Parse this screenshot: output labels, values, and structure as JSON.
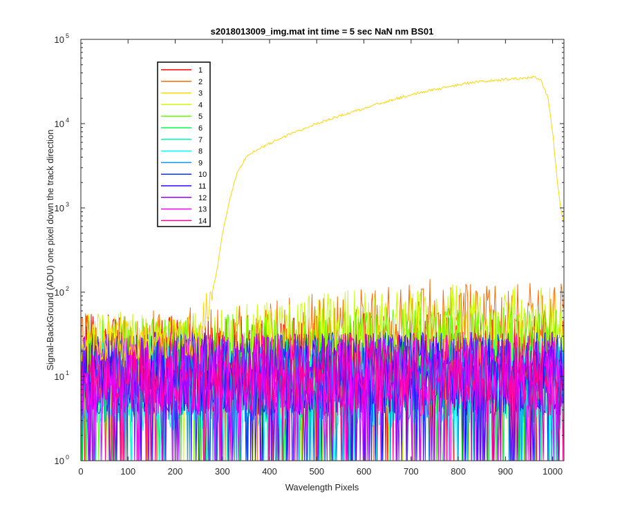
{
  "chart_data": {
    "type": "line",
    "title": "s2018013009_img.mat int time = 5 sec  NaN nm BS01",
    "xlabel": "Wavelength Pixels",
    "ylabel": "Signal-BackGround (ADU) one pixel down the track direction",
    "xlim": [
      0,
      1024
    ],
    "ylim": [
      1,
      100000
    ],
    "yscale": "log",
    "grid": false,
    "legend_position": "top-left",
    "x_ticks": [
      "0",
      "100",
      "200",
      "300",
      "400",
      "500",
      "600",
      "700",
      "800",
      "900",
      "1000"
    ],
    "y_ticks": [
      {
        "base": "10",
        "exp": "0"
      },
      {
        "base": "10",
        "exp": "1"
      },
      {
        "base": "10",
        "exp": "2"
      },
      {
        "base": "10",
        "exp": "3"
      },
      {
        "base": "10",
        "exp": "4"
      },
      {
        "base": "10",
        "exp": "5"
      }
    ],
    "series": [
      {
        "name": "1",
        "color": "#ff0000",
        "level": [
          [
            0,
            20
          ],
          [
            1024,
            20
          ]
        ],
        "noise": "high"
      },
      {
        "name": "2",
        "color": "#ff6a00",
        "level": [
          [
            0,
            20
          ],
          [
            300,
            25
          ],
          [
            500,
            35
          ],
          [
            760,
            55
          ],
          [
            1024,
            45
          ]
        ],
        "noise": "high"
      },
      {
        "name": "3",
        "color": "#ffd400",
        "values": [
          [
            0,
            25
          ],
          [
            240,
            30
          ],
          [
            260,
            45
          ],
          [
            275,
            80
          ],
          [
            290,
            200
          ],
          [
            300,
            500
          ],
          [
            315,
            1200
          ],
          [
            330,
            2500
          ],
          [
            350,
            4000
          ],
          [
            375,
            5000
          ],
          [
            400,
            5800
          ],
          [
            450,
            7800
          ],
          [
            500,
            10000
          ],
          [
            550,
            12500
          ],
          [
            600,
            15000
          ],
          [
            650,
            18500
          ],
          [
            700,
            22000
          ],
          [
            750,
            25500
          ],
          [
            800,
            29000
          ],
          [
            850,
            32000
          ],
          [
            900,
            33500
          ],
          [
            940,
            34500
          ],
          [
            960,
            35500
          ],
          [
            975,
            33000
          ],
          [
            990,
            20000
          ],
          [
            1000,
            8000
          ],
          [
            1010,
            2000
          ],
          [
            1018,
            900
          ],
          [
            1024,
            650
          ]
        ]
      },
      {
        "name": "4",
        "color": "#c8ff00",
        "level": [
          [
            0,
            20
          ],
          [
            400,
            28
          ],
          [
            600,
            40
          ],
          [
            800,
            45
          ],
          [
            1024,
            42
          ]
        ],
        "noise": "high"
      },
      {
        "name": "5",
        "color": "#66ff00",
        "level": [
          [
            0,
            18
          ],
          [
            400,
            20
          ],
          [
            700,
            25
          ],
          [
            1024,
            24
          ]
        ],
        "noise": "high"
      },
      {
        "name": "6",
        "color": "#00ff40",
        "level": [
          [
            0,
            10
          ],
          [
            1024,
            10
          ]
        ],
        "noise": "high"
      },
      {
        "name": "7",
        "color": "#00ffaa",
        "level": [
          [
            0,
            10
          ],
          [
            1024,
            10
          ]
        ],
        "noise": "high"
      },
      {
        "name": "8",
        "color": "#00ffff",
        "level": [
          [
            0,
            8
          ],
          [
            1024,
            8
          ]
        ],
        "noise": "high"
      },
      {
        "name": "9",
        "color": "#0095ff",
        "level": [
          [
            0,
            10
          ],
          [
            1024,
            10
          ]
        ],
        "noise": "high"
      },
      {
        "name": "10",
        "color": "#0033ff",
        "level": [
          [
            0,
            12
          ],
          [
            1024,
            12
          ]
        ],
        "noise": "high"
      },
      {
        "name": "11",
        "color": "#3300ff",
        "level": [
          [
            0,
            12
          ],
          [
            1024,
            12
          ]
        ],
        "noise": "high"
      },
      {
        "name": "12",
        "color": "#9900ff",
        "level": [
          [
            0,
            12
          ],
          [
            1024,
            12
          ]
        ],
        "noise": "high"
      },
      {
        "name": "13",
        "color": "#ff00ff",
        "level": [
          [
            0,
            12
          ],
          [
            1024,
            12
          ]
        ],
        "noise": "high"
      },
      {
        "name": "14",
        "color": "#ff0099",
        "level": [
          [
            0,
            12
          ],
          [
            1024,
            12
          ]
        ],
        "noise": "high"
      }
    ]
  }
}
